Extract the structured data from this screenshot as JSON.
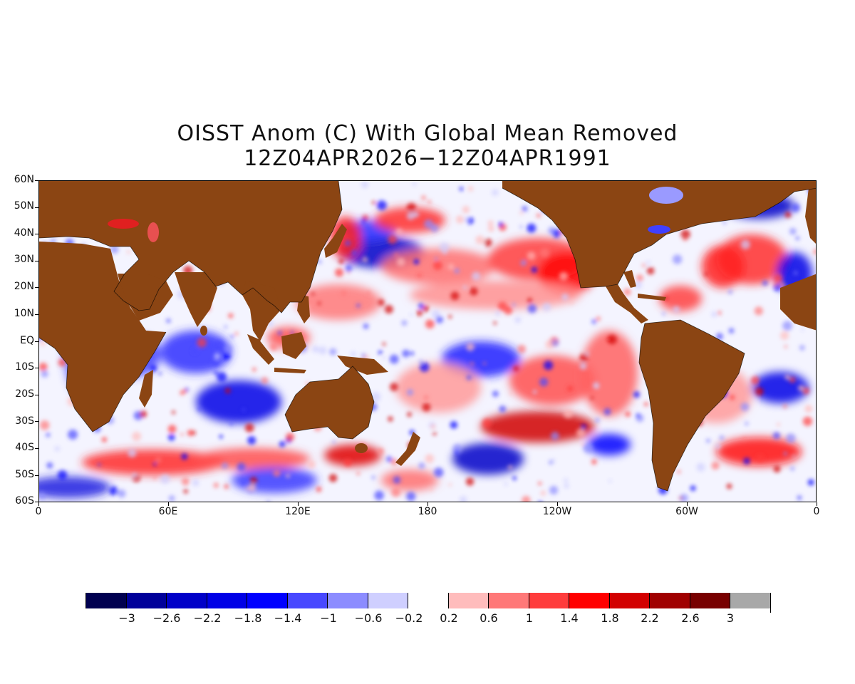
{
  "title": {
    "line1": "OISST Anom (C) With Global Mean Removed",
    "line2": "12Z04APR2026−12Z04APR1991"
  },
  "axes": {
    "lat_labels": [
      "60N",
      "50N",
      "40N",
      "30N",
      "20N",
      "10N",
      "EQ",
      "10S",
      "20S",
      "30S",
      "40S",
      "50S",
      "60S"
    ],
    "lon_labels": [
      "0",
      "60E",
      "120E",
      "180",
      "120W",
      "60W",
      "0"
    ]
  },
  "colorbar": {
    "labels": [
      "−3",
      "−2.6",
      "−2.2",
      "−1.8",
      "−1.4",
      "−1",
      "−0.6",
      "−0.2",
      "0.2",
      "0.6",
      "1",
      "1.4",
      "1.8",
      "2.2",
      "2.6",
      "3"
    ],
    "colors": [
      "#000050",
      "#00009a",
      "#0000c8",
      "#0000e6",
      "#0000ff",
      "#4848ff",
      "#8c8cff",
      "#cfcfff",
      "#ffffff",
      "#ffbcbc",
      "#ff7878",
      "#ff3c3c",
      "#ff0000",
      "#d20000",
      "#a00000",
      "#780000",
      "#a8a8a8"
    ]
  },
  "map_colors": {
    "land": "#8b4513",
    "ocean_base": "#f4f4ff"
  }
}
